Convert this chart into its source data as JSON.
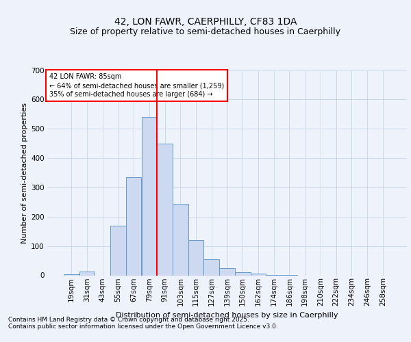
{
  "title1": "42, LON FAWR, CAERPHILLY, CF83 1DA",
  "title2": "Size of property relative to semi-detached houses in Caerphilly",
  "xlabel": "Distribution of semi-detached houses by size in Caerphilly",
  "ylabel": "Number of semi-detached properties",
  "bins": [
    "19sqm",
    "31sqm",
    "43sqm",
    "55sqm",
    "67sqm",
    "79sqm",
    "91sqm",
    "103sqm",
    "115sqm",
    "127sqm",
    "139sqm",
    "150sqm",
    "162sqm",
    "174sqm",
    "186sqm",
    "198sqm",
    "210sqm",
    "222sqm",
    "234sqm",
    "246sqm",
    "258sqm"
  ],
  "values": [
    3,
    13,
    0,
    170,
    335,
    540,
    450,
    245,
    120,
    55,
    25,
    10,
    5,
    2,
    1,
    0,
    0,
    0,
    0,
    0,
    0
  ],
  "bar_color": "#ccd9f0",
  "bar_edge_color": "#6699cc",
  "vline_pos": 6.5,
  "vline_color": "red",
  "annotation_title": "42 LON FAWR: 85sqm",
  "annotation_line1": "← 64% of semi-detached houses are smaller (1,259)",
  "annotation_line2": "35% of semi-detached houses are larger (684) →",
  "ylim": [
    0,
    700
  ],
  "yticks": [
    0,
    100,
    200,
    300,
    400,
    500,
    600,
    700
  ],
  "footer1": "Contains HM Land Registry data © Crown copyright and database right 2025.",
  "footer2": "Contains public sector information licensed under the Open Government Licence v3.0.",
  "bg_color": "#eef2fb",
  "plot_bg_color": "#eef2fb",
  "title1_fontsize": 10,
  "title2_fontsize": 9,
  "axis_fontsize": 7.5,
  "ylabel_fontsize": 8,
  "xlabel_fontsize": 8,
  "footer_fontsize": 6.5
}
